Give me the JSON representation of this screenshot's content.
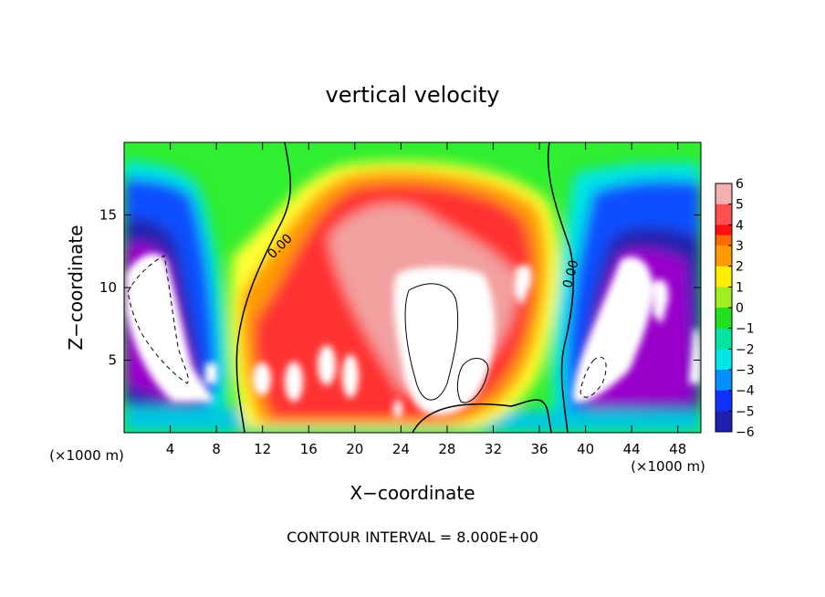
{
  "chart_data": {
    "type": "heatmap",
    "title": "vertical velocity",
    "xlabel": "X−coordinate",
    "ylabel": "Z−coordinate",
    "x_unit_left": "(×1000 m)",
    "x_unit_right": "(×1000 m)",
    "footer": "CONTOUR INTERVAL = 8.000E+00",
    "xlim": [
      0,
      50
    ],
    "ylim": [
      0,
      20
    ],
    "x_ticks": [
      4,
      8,
      12,
      16,
      20,
      24,
      28,
      32,
      36,
      40,
      44,
      48
    ],
    "x_tick_labels": [
      "4",
      "8",
      "12",
      "16",
      "20",
      "24",
      "28",
      "32",
      "36",
      "40",
      "44",
      "48"
    ],
    "y_ticks": [
      5,
      10,
      15
    ],
    "y_tick_labels": [
      "5",
      "10",
      "15"
    ],
    "colorbar": {
      "range": [
        -6,
        6
      ],
      "tick_labels": [
        "6",
        "5",
        "4",
        "3",
        "2",
        "1",
        "0",
        "−1",
        "−2",
        "−3",
        "−4",
        "−5",
        "−6"
      ],
      "colors": [
        "#f2a0a0",
        "#ff3030",
        "#ff9900",
        "#ffff00",
        "#30ee30",
        "#00ffff",
        "#1050ff",
        "#9900cc"
      ]
    },
    "contour_labels": [
      {
        "text": "0.00",
        "x": 11.5,
        "z": 13.0
      },
      {
        "text": "0.00",
        "x": 37.7,
        "z": 11.0
      }
    ],
    "annotation": "Shaded field of vertical velocity with white regions where |w| exceeds 6; strong updraft core (red/white) near x 20–36, z 5–18; downdrafts (blue/purple/white) near x 0–8 and x 39–50."
  }
}
